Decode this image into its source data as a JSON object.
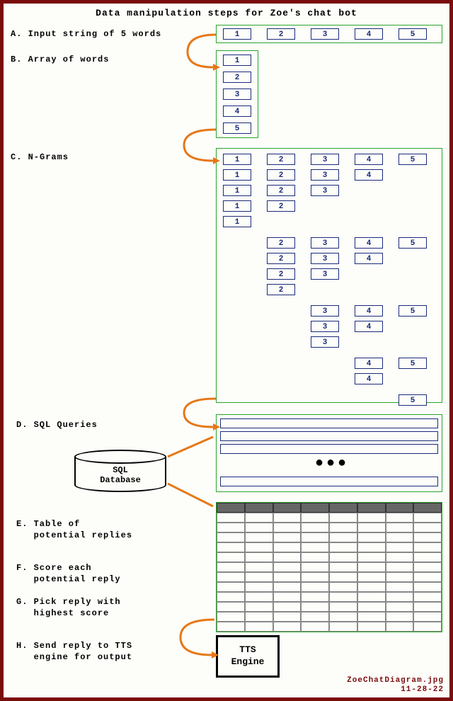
{
  "title": "Data manipulation steps for Zoe's chat bot",
  "steps": {
    "A": "A. Input string of 5 words",
    "B": "B. Array of words",
    "C": "C. N-Grams",
    "D": "D. SQL Queries",
    "E": "E. Table of\n   potential replies",
    "F": "F. Score each\n   potential reply",
    "G": "G. Pick reply with\n   highest score",
    "H": "H. Send reply to TTS\n   engine for output"
  },
  "input_row": [
    "1",
    "2",
    "3",
    "4",
    "5"
  ],
  "array_col": [
    "1",
    "2",
    "3",
    "4",
    "5"
  ],
  "ngrams": {
    "block1": [
      [
        "1",
        "2",
        "3",
        "4",
        "5"
      ],
      [
        "1",
        "2",
        "3",
        "4"
      ],
      [
        "1",
        "2",
        "3"
      ],
      [
        "1",
        "2"
      ],
      [
        "1"
      ]
    ],
    "block2": [
      [
        "2",
        "3",
        "4",
        "5"
      ],
      [
        "2",
        "3",
        "4"
      ],
      [
        "2",
        "3"
      ],
      [
        "2"
      ]
    ],
    "block3": [
      [
        "3",
        "4",
        "5"
      ],
      [
        "3",
        "4"
      ],
      [
        "3"
      ]
    ],
    "block4": [
      [
        "4",
        "5"
      ],
      [
        "4"
      ]
    ],
    "block5": [
      [
        "5"
      ]
    ]
  },
  "db_label": "SQL\nDatabase",
  "tts_label": "TTS\nEngine",
  "dots": "●●●",
  "table": {
    "cols": 8,
    "rows": 13
  },
  "colors": {
    "border": "#7a0c0c",
    "green": "#2aa52a",
    "navy": "#1a2b7a",
    "orange": "#e67817"
  },
  "footer": {
    "filename": "ZoeChatDiagram.jpg",
    "date": "11-28-22"
  }
}
